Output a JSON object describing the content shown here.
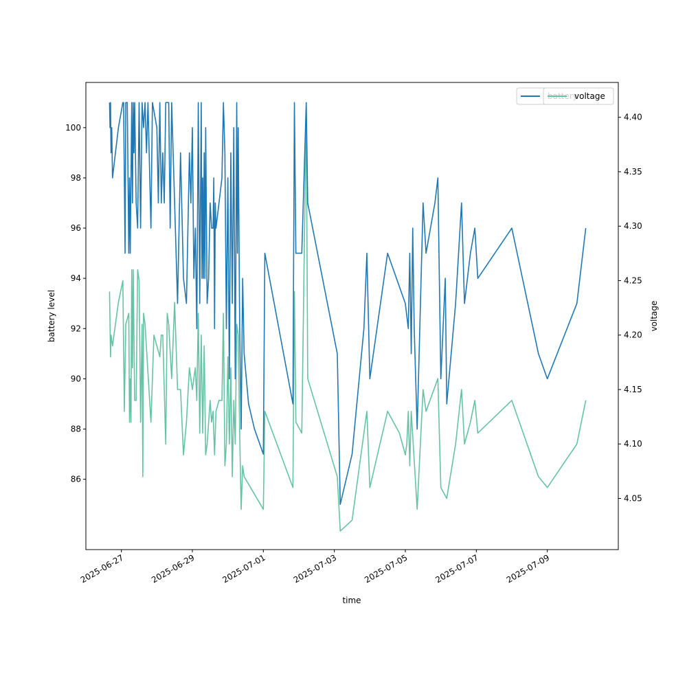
{
  "chart_data": {
    "type": "line",
    "xlabel": "time",
    "ylabel": "battery level",
    "ylabel_right": "voltage",
    "xlim": [
      "2025-06-26T00:00",
      "2025-07-11T00:00"
    ],
    "ylim": [
      83.2,
      101.8
    ],
    "ylim_right": [
      4.003,
      4.432
    ],
    "x_ticks": [
      "2025-06-27",
      "2025-06-29",
      "2025-07-01",
      "2025-07-03",
      "2025-07-05",
      "2025-07-07",
      "2025-07-09"
    ],
    "y_ticks": [
      "86",
      "88",
      "90",
      "92",
      "94",
      "96",
      "98",
      "100"
    ],
    "y_ticks_right": [
      "4.05",
      "4.10",
      "4.15",
      "4.20",
      "4.25",
      "4.30",
      "4.35",
      "4.40"
    ],
    "legends": [
      {
        "label": "battery",
        "color": "#1f77b4",
        "position": "upper right"
      },
      {
        "label": "voltage",
        "color": "#66c2a5",
        "position": "upper right"
      }
    ],
    "series": [
      {
        "name": "battery",
        "axis": "left",
        "color": "#1f77b4",
        "points": [
          [
            "2025-06-26T16:00",
            101
          ],
          [
            "2025-06-26T16:20",
            100
          ],
          [
            "2025-06-26T16:40",
            101
          ],
          [
            "2025-06-26T17:00",
            99
          ],
          [
            "2025-06-26T17:30",
            100
          ],
          [
            "2025-06-26T18:00",
            98
          ],
          [
            "2025-06-26T20:00",
            99
          ],
          [
            "2025-06-26T22:00",
            100
          ],
          [
            "2025-06-27T01:00",
            101
          ],
          [
            "2025-06-27T01:30",
            101
          ],
          [
            "2025-06-27T02:30",
            95
          ],
          [
            "2025-06-27T03:00",
            101
          ],
          [
            "2025-06-27T04:00",
            101
          ],
          [
            "2025-06-27T05:00",
            95
          ],
          [
            "2025-06-27T05:30",
            98
          ],
          [
            "2025-06-27T06:00",
            95
          ],
          [
            "2025-06-27T07:00",
            101
          ],
          [
            "2025-06-27T07:30",
            97
          ],
          [
            "2025-06-27T08:00",
            101
          ],
          [
            "2025-06-27T08:30",
            99
          ],
          [
            "2025-06-27T09:00",
            101
          ],
          [
            "2025-06-27T10:00",
            97
          ],
          [
            "2025-06-27T11:00",
            96
          ],
          [
            "2025-06-27T12:00",
            101
          ],
          [
            "2025-06-27T13:00",
            96
          ],
          [
            "2025-06-27T14:00",
            101
          ],
          [
            "2025-06-27T15:00",
            100
          ],
          [
            "2025-06-27T16:00",
            101
          ],
          [
            "2025-06-27T17:00",
            99
          ],
          [
            "2025-06-27T18:00",
            101
          ],
          [
            "2025-06-27T20:00",
            96
          ],
          [
            "2025-06-27T21:00",
            101
          ],
          [
            "2025-06-28T00:00",
            100
          ],
          [
            "2025-06-28T01:00",
            97
          ],
          [
            "2025-06-28T02:00",
            101
          ],
          [
            "2025-06-28T03:00",
            97
          ],
          [
            "2025-06-28T04:00",
            99
          ],
          [
            "2025-06-28T05:00",
            97
          ],
          [
            "2025-06-28T06:00",
            101
          ],
          [
            "2025-06-28T08:00",
            101
          ],
          [
            "2025-06-28T09:00",
            96
          ],
          [
            "2025-06-28T10:00",
            101
          ],
          [
            "2025-06-28T12:00",
            97
          ],
          [
            "2025-06-28T14:00",
            93
          ],
          [
            "2025-06-28T16:00",
            99
          ],
          [
            "2025-06-28T18:00",
            94
          ],
          [
            "2025-06-28T20:00",
            93
          ],
          [
            "2025-06-28T22:00",
            99
          ],
          [
            "2025-06-28T23:00",
            97
          ],
          [
            "2025-06-29T00:00",
            100
          ],
          [
            "2025-06-29T01:00",
            94
          ],
          [
            "2025-06-29T02:00",
            96
          ],
          [
            "2025-06-29T03:00",
            92
          ],
          [
            "2025-06-29T04:00",
            101
          ],
          [
            "2025-06-29T05:00",
            93
          ],
          [
            "2025-06-29T06:00",
            101
          ],
          [
            "2025-06-29T06:30",
            94
          ],
          [
            "2025-06-29T07:00",
            98
          ],
          [
            "2025-06-29T07:30",
            94
          ],
          [
            "2025-06-29T08:00",
            99
          ],
          [
            "2025-06-29T08:30",
            94
          ],
          [
            "2025-06-29T09:00",
            100
          ],
          [
            "2025-06-29T10:00",
            93
          ],
          [
            "2025-06-29T11:00",
            94
          ],
          [
            "2025-06-29T12:00",
            97
          ],
          [
            "2025-06-29T13:00",
            96
          ],
          [
            "2025-06-29T14:00",
            96
          ],
          [
            "2025-06-29T14:30",
            98
          ],
          [
            "2025-06-29T15:00",
            92
          ],
          [
            "2025-06-29T15:30",
            97
          ],
          [
            "2025-06-29T16:00",
            96
          ],
          [
            "2025-06-29T18:00",
            97
          ],
          [
            "2025-06-29T20:00",
            98
          ],
          [
            "2025-06-29T21:00",
            101
          ],
          [
            "2025-06-29T22:00",
            99
          ],
          [
            "2025-06-29T23:00",
            92
          ],
          [
            "2025-06-30T00:00",
            98
          ],
          [
            "2025-06-30T01:00",
            90
          ],
          [
            "2025-06-30T02:00",
            99
          ],
          [
            "2025-06-30T03:00",
            93
          ],
          [
            "2025-06-30T04:00",
            100
          ],
          [
            "2025-06-30T05:00",
            90
          ],
          [
            "2025-06-30T06:00",
            101
          ],
          [
            "2025-06-30T06:30",
            95
          ],
          [
            "2025-06-30T07:00",
            100
          ],
          [
            "2025-06-30T08:00",
            92
          ],
          [
            "2025-06-30T09:00",
            88
          ],
          [
            "2025-06-30T10:00",
            94
          ],
          [
            "2025-06-30T11:00",
            91
          ],
          [
            "2025-06-30T14:00",
            89
          ],
          [
            "2025-06-30T18:00",
            88
          ],
          [
            "2025-07-01T00:00",
            87
          ],
          [
            "2025-07-01T01:00",
            95
          ],
          [
            "2025-07-01T20:00",
            89
          ],
          [
            "2025-07-01T21:00",
            101
          ],
          [
            "2025-07-01T22:00",
            95
          ],
          [
            "2025-07-02T00:00",
            95
          ],
          [
            "2025-07-02T02:00",
            95
          ],
          [
            "2025-07-02T05:00",
            101
          ],
          [
            "2025-07-02T06:00",
            97
          ],
          [
            "2025-07-03T02:00",
            91
          ],
          [
            "2025-07-03T04:00",
            85
          ],
          [
            "2025-07-03T12:00",
            87
          ],
          [
            "2025-07-03T20:00",
            92
          ],
          [
            "2025-07-03T22:00",
            95
          ],
          [
            "2025-07-04T00:00",
            90
          ],
          [
            "2025-07-04T12:00",
            95
          ],
          [
            "2025-07-04T18:00",
            94
          ],
          [
            "2025-07-05T00:00",
            93
          ],
          [
            "2025-07-05T02:00",
            92
          ],
          [
            "2025-07-05T03:00",
            95
          ],
          [
            "2025-07-05T04:00",
            91
          ],
          [
            "2025-07-05T05:00",
            96
          ],
          [
            "2025-07-05T06:00",
            92
          ],
          [
            "2025-07-05T08:00",
            88
          ],
          [
            "2025-07-05T12:00",
            97
          ],
          [
            "2025-07-05T14:00",
            95
          ],
          [
            "2025-07-05T20:00",
            97
          ],
          [
            "2025-07-05T22:00",
            98
          ],
          [
            "2025-07-06T00:00",
            90
          ],
          [
            "2025-07-06T03:00",
            94
          ],
          [
            "2025-07-06T04:00",
            89
          ],
          [
            "2025-07-06T10:00",
            93
          ],
          [
            "2025-07-06T14:00",
            97
          ],
          [
            "2025-07-06T16:00",
            93
          ],
          [
            "2025-07-06T20:00",
            95
          ],
          [
            "2025-07-06T23:00",
            96
          ],
          [
            "2025-07-07T01:00",
            94
          ],
          [
            "2025-07-08T00:00",
            96
          ],
          [
            "2025-07-08T18:00",
            91
          ],
          [
            "2025-07-09T00:00",
            90
          ],
          [
            "2025-07-09T20:00",
            93
          ],
          [
            "2025-07-10T00:00",
            95
          ],
          [
            "2025-07-10T02:00",
            96
          ]
        ]
      },
      {
        "name": "voltage",
        "axis": "right",
        "color": "#66c2a5",
        "points": [
          [
            "2025-06-26T16:00",
            4.24
          ],
          [
            "2025-06-26T16:20",
            4.21
          ],
          [
            "2025-06-26T16:40",
            4.18
          ],
          [
            "2025-06-26T17:00",
            4.2
          ],
          [
            "2025-06-26T18:00",
            4.19
          ],
          [
            "2025-06-26T20:00",
            4.21
          ],
          [
            "2025-06-26T22:00",
            4.23
          ],
          [
            "2025-06-27T01:00",
            4.25
          ],
          [
            "2025-06-27T02:00",
            4.13
          ],
          [
            "2025-06-27T03:00",
            4.21
          ],
          [
            "2025-06-27T05:00",
            4.22
          ],
          [
            "2025-06-27T05:30",
            4.12
          ],
          [
            "2025-06-27T06:00",
            4.16
          ],
          [
            "2025-06-27T06:30",
            4.12
          ],
          [
            "2025-06-27T07:00",
            4.26
          ],
          [
            "2025-06-27T07:30",
            4.17
          ],
          [
            "2025-06-27T08:00",
            4.26
          ],
          [
            "2025-06-27T09:00",
            4.14
          ],
          [
            "2025-06-27T10:00",
            4.14
          ],
          [
            "2025-06-27T11:00",
            4.26
          ],
          [
            "2025-06-27T12:00",
            4.25
          ],
          [
            "2025-06-27T13:00",
            4.12
          ],
          [
            "2025-06-27T14:00",
            4.21
          ],
          [
            "2025-06-27T14:30",
            4.07
          ],
          [
            "2025-06-27T15:00",
            4.22
          ],
          [
            "2025-06-27T16:00",
            4.21
          ],
          [
            "2025-06-27T20:00",
            4.12
          ],
          [
            "2025-06-27T22:00",
            4.2
          ],
          [
            "2025-06-28T02:00",
            4.18
          ],
          [
            "2025-06-28T03:00",
            4.2
          ],
          [
            "2025-06-28T04:00",
            4.2
          ],
          [
            "2025-06-28T06:00",
            4.1
          ],
          [
            "2025-06-28T07:00",
            4.22
          ],
          [
            "2025-06-28T08:00",
            4.21
          ],
          [
            "2025-06-28T10:00",
            4.16
          ],
          [
            "2025-06-28T12:00",
            4.23
          ],
          [
            "2025-06-28T14:00",
            4.15
          ],
          [
            "2025-06-28T16:00",
            4.15
          ],
          [
            "2025-06-28T18:00",
            4.09
          ],
          [
            "2025-06-28T20:00",
            4.12
          ],
          [
            "2025-06-28T22:00",
            4.17
          ],
          [
            "2025-06-29T00:00",
            4.15
          ],
          [
            "2025-06-29T02:00",
            4.17
          ],
          [
            "2025-06-29T03:00",
            4.14
          ],
          [
            "2025-06-29T04:00",
            4.22
          ],
          [
            "2025-06-29T05:00",
            4.11
          ],
          [
            "2025-06-29T06:00",
            4.2
          ],
          [
            "2025-06-29T07:00",
            4.11
          ],
          [
            "2025-06-29T08:00",
            4.19
          ],
          [
            "2025-06-29T09:00",
            4.09
          ],
          [
            "2025-06-29T10:00",
            4.1
          ],
          [
            "2025-06-29T12:00",
            4.14
          ],
          [
            "2025-06-29T13:00",
            4.12
          ],
          [
            "2025-06-29T14:00",
            4.13
          ],
          [
            "2025-06-29T15:00",
            4.09
          ],
          [
            "2025-06-29T16:00",
            4.13
          ],
          [
            "2025-06-29T18:00",
            4.14
          ],
          [
            "2025-06-29T20:00",
            4.14
          ],
          [
            "2025-06-29T21:00",
            4.22
          ],
          [
            "2025-06-29T22:00",
            4.08
          ],
          [
            "2025-06-29T23:00",
            4.1
          ],
          [
            "2025-06-30T00:00",
            4.18
          ],
          [
            "2025-06-30T01:00",
            4.1
          ],
          [
            "2025-06-30T02:00",
            4.17
          ],
          [
            "2025-06-30T03:00",
            4.07
          ],
          [
            "2025-06-30T04:00",
            4.14
          ],
          [
            "2025-06-30T05:00",
            4.1
          ],
          [
            "2025-06-30T06:00",
            4.21
          ],
          [
            "2025-06-30T07:00",
            4.2
          ],
          [
            "2025-06-30T08:00",
            4.11
          ],
          [
            "2025-06-30T09:00",
            4.04
          ],
          [
            "2025-06-30T10:00",
            4.08
          ],
          [
            "2025-06-30T11:00",
            4.07
          ],
          [
            "2025-07-01T00:00",
            4.04
          ],
          [
            "2025-07-01T01:00",
            4.13
          ],
          [
            "2025-07-01T20:00",
            4.06
          ],
          [
            "2025-07-01T21:00",
            4.24
          ],
          [
            "2025-07-01T22:00",
            4.12
          ],
          [
            "2025-07-02T02:00",
            4.11
          ],
          [
            "2025-07-02T05:00",
            4.41
          ],
          [
            "2025-07-02T06:00",
            4.16
          ],
          [
            "2025-07-03T02:00",
            4.07
          ],
          [
            "2025-07-03T04:00",
            4.02
          ],
          [
            "2025-07-03T12:00",
            4.03
          ],
          [
            "2025-07-03T22:00",
            4.13
          ],
          [
            "2025-07-04T00:00",
            4.06
          ],
          [
            "2025-07-04T12:00",
            4.13
          ],
          [
            "2025-07-04T20:00",
            4.11
          ],
          [
            "2025-07-05T00:00",
            4.09
          ],
          [
            "2025-07-05T01:00",
            4.1
          ],
          [
            "2025-07-05T02:00",
            4.13
          ],
          [
            "2025-07-05T03:00",
            4.08
          ],
          [
            "2025-07-05T04:00",
            4.13
          ],
          [
            "2025-07-05T08:00",
            4.04
          ],
          [
            "2025-07-05T12:00",
            4.15
          ],
          [
            "2025-07-05T14:00",
            4.13
          ],
          [
            "2025-07-05T22:00",
            4.16
          ],
          [
            "2025-07-06T00:00",
            4.06
          ],
          [
            "2025-07-06T04:00",
            4.05
          ],
          [
            "2025-07-06T10:00",
            4.1
          ],
          [
            "2025-07-06T14:00",
            4.15
          ],
          [
            "2025-07-06T16:00",
            4.1
          ],
          [
            "2025-07-06T20:00",
            4.12
          ],
          [
            "2025-07-06T23:00",
            4.14
          ],
          [
            "2025-07-07T01:00",
            4.11
          ],
          [
            "2025-07-08T00:00",
            4.14
          ],
          [
            "2025-07-08T18:00",
            4.07
          ],
          [
            "2025-07-09T00:00",
            4.06
          ],
          [
            "2025-07-09T20:00",
            4.1
          ],
          [
            "2025-07-10T02:00",
            4.14
          ]
        ]
      }
    ]
  }
}
